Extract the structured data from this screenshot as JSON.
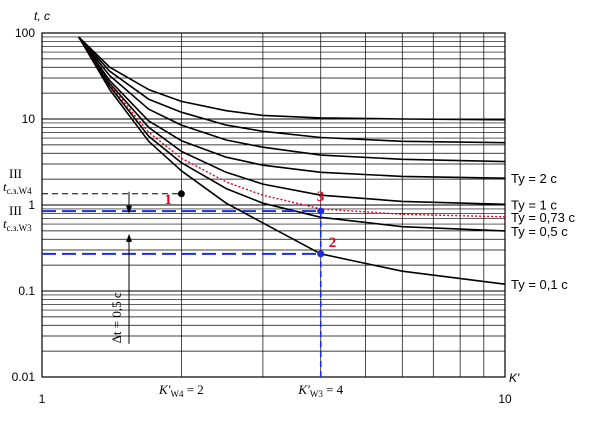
{
  "chart_data": {
    "type": "line",
    "xscale": "log",
    "yscale": "log",
    "xlim": [
      1,
      10
    ],
    "ylim": [
      0.01,
      100
    ],
    "grid": true,
    "xlabel": "K'",
    "ylabel": "t, c",
    "x_tick_labels": [
      "1",
      "10"
    ],
    "y_tick_labels": [
      "0.01",
      "0.1",
      "1",
      "10",
      "100"
    ],
    "series": [
      {
        "name": "",
        "color": "#000000",
        "style": "solid",
        "points": [
          [
            1.2,
            90
          ],
          [
            1.4,
            40
          ],
          [
            1.7,
            22
          ],
          [
            2,
            16
          ],
          [
            2.5,
            12.5
          ],
          [
            3,
            11
          ],
          [
            4,
            10.3
          ],
          [
            6,
            10
          ],
          [
            10,
            9.8
          ]
        ]
      },
      {
        "name": "",
        "color": "#000000",
        "style": "solid",
        "points": [
          [
            1.2,
            90
          ],
          [
            1.4,
            36
          ],
          [
            1.7,
            17
          ],
          [
            2,
            12
          ],
          [
            2.5,
            8.5
          ],
          [
            3,
            7.2
          ],
          [
            4,
            6.1
          ],
          [
            6,
            5.5
          ],
          [
            10,
            5.3
          ]
        ]
      },
      {
        "name": "",
        "color": "#000000",
        "style": "solid",
        "points": [
          [
            1.2,
            90
          ],
          [
            1.4,
            32
          ],
          [
            1.7,
            13
          ],
          [
            2,
            8.5
          ],
          [
            2.5,
            5.7
          ],
          [
            3,
            4.7
          ],
          [
            4,
            3.8
          ],
          [
            6,
            3.4
          ],
          [
            10,
            3.2
          ]
        ]
      },
      {
        "name": "Ty = 2 c",
        "color": "#000000",
        "style": "solid",
        "points": [
          [
            1.2,
            90
          ],
          [
            1.4,
            28
          ],
          [
            1.7,
            9.5
          ],
          [
            2,
            5.6
          ],
          [
            2.5,
            3.6
          ],
          [
            3,
            2.9
          ],
          [
            4,
            2.4
          ],
          [
            6,
            2.15
          ],
          [
            10,
            2.05
          ]
        ]
      },
      {
        "name": "Ty = 1 c",
        "color": "#000000",
        "style": "solid",
        "points": [
          [
            1.2,
            90
          ],
          [
            1.4,
            26
          ],
          [
            1.7,
            8
          ],
          [
            2,
            4.2
          ],
          [
            2.5,
            2.4
          ],
          [
            3,
            1.75
          ],
          [
            4,
            1.3
          ],
          [
            6,
            1.1
          ],
          [
            10,
            1.02
          ]
        ]
      },
      {
        "name": "Ty = 0,73 c",
        "color": "#e0001a",
        "style": "dotted",
        "points": [
          [
            1.2,
            90
          ],
          [
            1.4,
            25
          ],
          [
            1.7,
            7
          ],
          [
            2,
            3.5
          ],
          [
            2.5,
            1.85
          ],
          [
            3,
            1.3
          ],
          [
            4,
            0.9
          ],
          [
            6,
            0.78
          ],
          [
            10,
            0.73
          ]
        ]
      },
      {
        "name": "Ty = 0,5 c",
        "color": "#000000",
        "style": "solid",
        "points": [
          [
            1.2,
            90
          ],
          [
            1.4,
            24
          ],
          [
            1.7,
            6.3
          ],
          [
            2,
            3.1
          ],
          [
            2.5,
            1.55
          ],
          [
            3,
            1.05
          ],
          [
            4,
            0.72
          ],
          [
            6,
            0.56
          ],
          [
            10,
            0.5
          ]
        ]
      },
      {
        "name": "Ty = 0,1 c",
        "color": "#000000",
        "style": "solid",
        "points": [
          [
            1.2,
            90
          ],
          [
            1.4,
            22
          ],
          [
            1.7,
            5.5
          ],
          [
            2,
            2.5
          ],
          [
            2.5,
            1.05
          ],
          [
            3,
            0.62
          ],
          [
            4,
            0.27
          ],
          [
            6,
            0.17
          ],
          [
            10,
            0.12
          ]
        ]
      }
    ],
    "markers": [
      {
        "label": "1",
        "x": 2,
        "y": 1.35,
        "color": "#000000"
      },
      {
        "label": "2",
        "x": 4,
        "y": 0.27,
        "color": "#1a2ee0"
      },
      {
        "label": "3",
        "x": 4,
        "y": 0.85,
        "color": "#1a2ee0"
      }
    ],
    "annotations": {
      "t_w4": {
        "main": "t",
        "sub": "с.з.W4",
        "sup": "III",
        "y": 1.35
      },
      "t_w3": {
        "main": "t",
        "sub": "с.з.W3",
        "sup": "III",
        "y": 0.85
      },
      "delta": "Δt = 0,5 c",
      "k_w4": {
        "main": "K′",
        "sub": "W4",
        "rest": " = 2",
        "x": 2
      },
      "k_w3": {
        "main": "K′",
        "sub": "W3",
        "rest": " = 4",
        "x": 4
      }
    }
  }
}
